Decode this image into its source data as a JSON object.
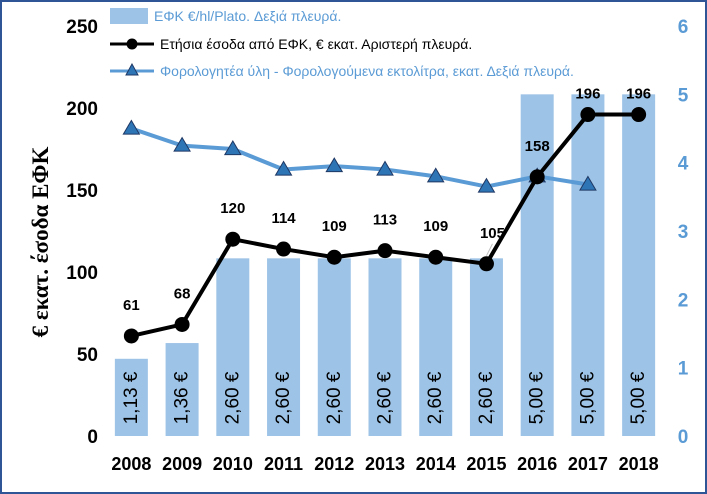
{
  "chart_data": {
    "type": "bar",
    "categories": [
      "2008",
      "2009",
      "2010",
      "2011",
      "2012",
      "2013",
      "2014",
      "2015",
      "2016",
      "2017",
      "2018"
    ],
    "ylabel": "€ εκατ. έσοδα ΕΦΚ",
    "y_left_lim": [
      0,
      250
    ],
    "y_left_ticks": [
      "0",
      "50",
      "100",
      "150",
      "200",
      "250"
    ],
    "y_right_lim": [
      0,
      6
    ],
    "y_right_ticks": [
      "0",
      "1",
      "2",
      "3",
      "4",
      "5",
      "6"
    ],
    "grid": false,
    "legend_position": "top",
    "series": [
      {
        "name": "ΕΦΚ  €/hl/Plato. Δεξιά πλευρά.",
        "type": "bar",
        "axis": "right",
        "values": [
          1.13,
          1.36,
          2.6,
          2.6,
          2.6,
          2.6,
          2.6,
          2.6,
          5.0,
          5.0,
          5.0
        ],
        "labels": [
          "1,13 €",
          "1,36 €",
          "2,60 €",
          "2,60 €",
          "2,60 €",
          "2,60 €",
          "2,60 €",
          "2,60 €",
          "5,00 €",
          "5,00 €",
          "5,00 €"
        ],
        "color": "#9dc3e6"
      },
      {
        "name": "Ετήσια έσοδα από ΕΦΚ,  € εκατ. Αριστερή πλευρά.",
        "type": "line",
        "axis": "left",
        "values": [
          61,
          68,
          120,
          114,
          109,
          113,
          109,
          105,
          158,
          196,
          196
        ],
        "labels": [
          "61",
          "68",
          "120",
          "114",
          "109",
          "113",
          "109",
          "105",
          "158",
          "196",
          "196"
        ],
        "color": "#000000"
      },
      {
        "name": "Φορολογητέα ύλη - Φορολογούμενα εκτολίτρα, εκατ. Δεξιά πλευρά.",
        "type": "line",
        "axis": "right",
        "values": [
          4.5,
          4.25,
          4.2,
          3.9,
          3.95,
          3.9,
          3.8,
          3.65,
          3.8,
          3.68,
          null
        ],
        "color": "#5b9bd5"
      }
    ]
  }
}
